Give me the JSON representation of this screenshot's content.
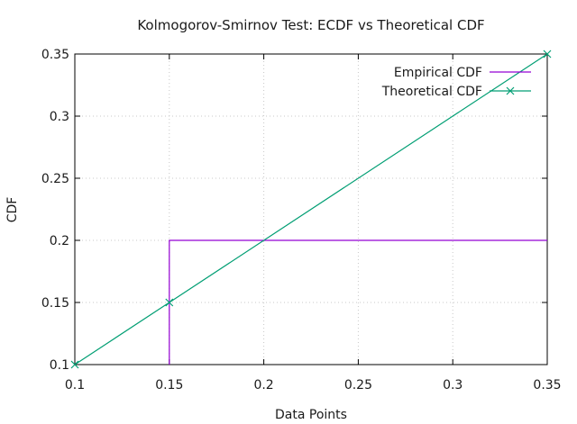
{
  "chart_data": {
    "type": "line",
    "title": "Kolmogorov-Smirnov Test: ECDF vs Theoretical CDF",
    "xlabel": "Data Points",
    "ylabel": "CDF",
    "xlim": [
      0.1,
      0.35
    ],
    "ylim": [
      0.1,
      0.35
    ],
    "xticks": [
      "0.1",
      "0.15",
      "0.2",
      "0.25",
      "0.3",
      "0.35"
    ],
    "yticks": [
      "0.1",
      "0.15",
      "0.2",
      "0.25",
      "0.3",
      "0.35"
    ],
    "xtick_values": [
      0.1,
      0.15,
      0.2,
      0.25,
      0.3,
      0.35
    ],
    "ytick_values": [
      0.1,
      0.15,
      0.2,
      0.25,
      0.3,
      0.35
    ],
    "grid": true,
    "legend_position": "top-right",
    "series": [
      {
        "name": "Empirical CDF",
        "style": "step",
        "color": "#9400d3",
        "x": [
          0.15,
          0.15,
          0.35
        ],
        "y": [
          0.1,
          0.2,
          0.2
        ]
      },
      {
        "name": "Theoretical CDF",
        "style": "linespoints",
        "marker": "x",
        "color": "#009e73",
        "x": [
          0.1,
          0.15,
          0.35
        ],
        "y": [
          0.1,
          0.15,
          0.35
        ]
      }
    ]
  }
}
